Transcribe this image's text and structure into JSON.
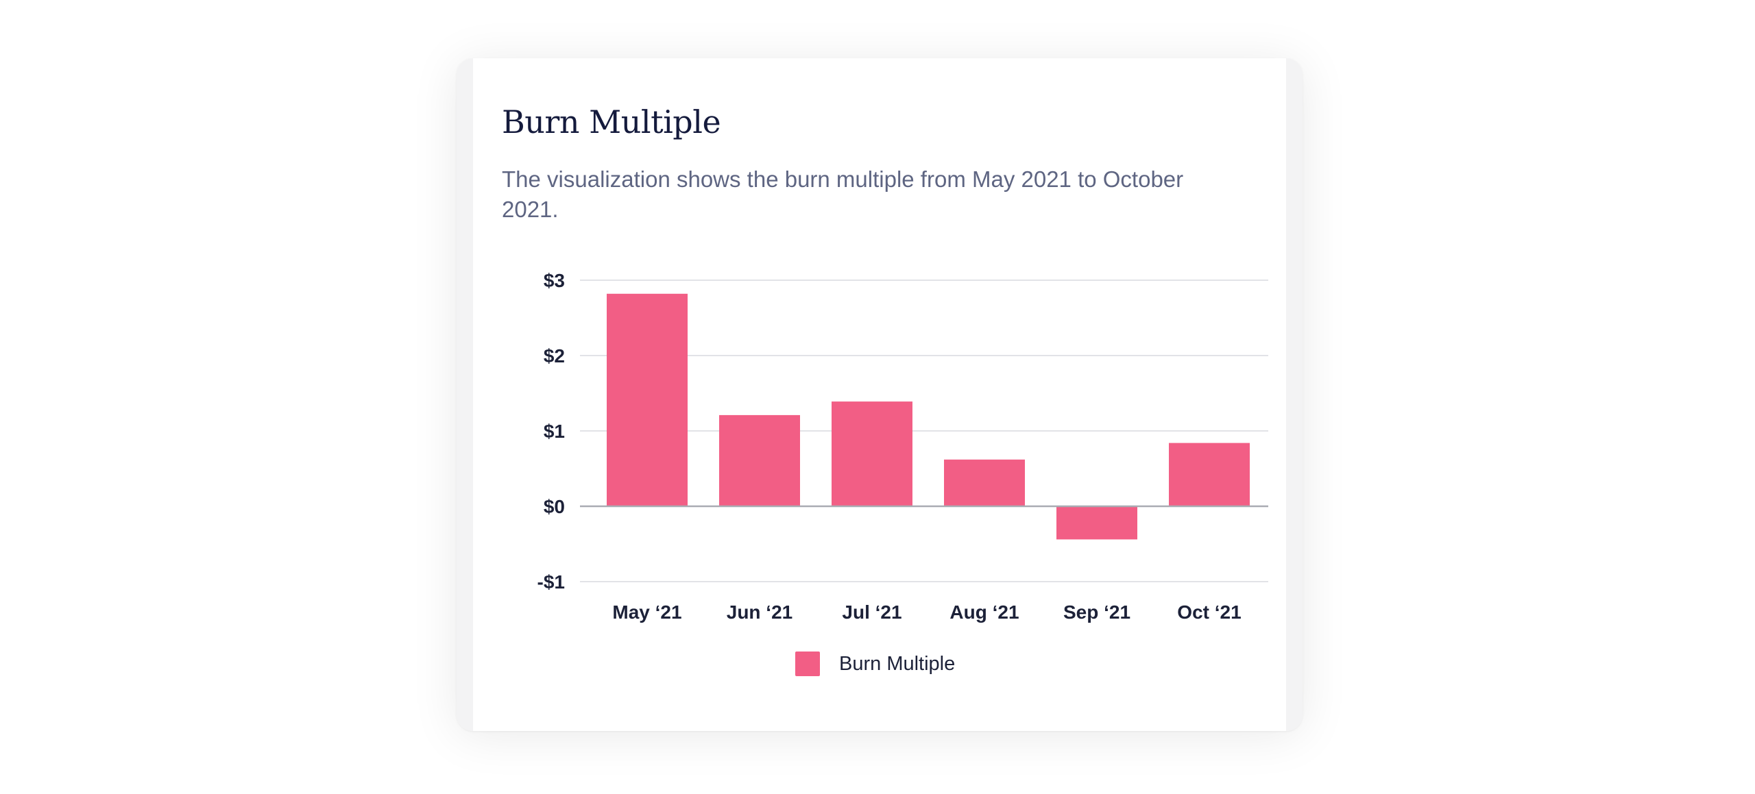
{
  "card": {
    "title": "Burn Multiple",
    "subtitle": "The visualization shows the burn multiple from May 2021 to October 2021."
  },
  "colors": {
    "bar": "#f25e85",
    "gridline": "#e2e3e7",
    "zeroline": "#a9abb3",
    "title": "#141a3c",
    "subtitle": "#5e6582"
  },
  "chart_data": {
    "type": "bar",
    "title": "Burn Multiple",
    "subtitle": "The visualization shows the burn multiple from May 2021 to October 2021.",
    "categories": [
      "May ‘21",
      "Jun ‘21",
      "Jul ‘21",
      "Aug ‘21",
      "Sep ‘21",
      "Oct ‘21"
    ],
    "series": [
      {
        "name": "Burn Multiple",
        "values": [
          2.82,
          1.21,
          1.39,
          0.62,
          -0.44,
          0.84
        ]
      }
    ],
    "yticks": [
      3,
      2,
      1,
      0,
      -1
    ],
    "ytick_labels": [
      "$3",
      "$2",
      "$1",
      "$0",
      "-$1"
    ],
    "ylim": [
      -1,
      3
    ],
    "grid": true,
    "legend": "bottom-center"
  }
}
